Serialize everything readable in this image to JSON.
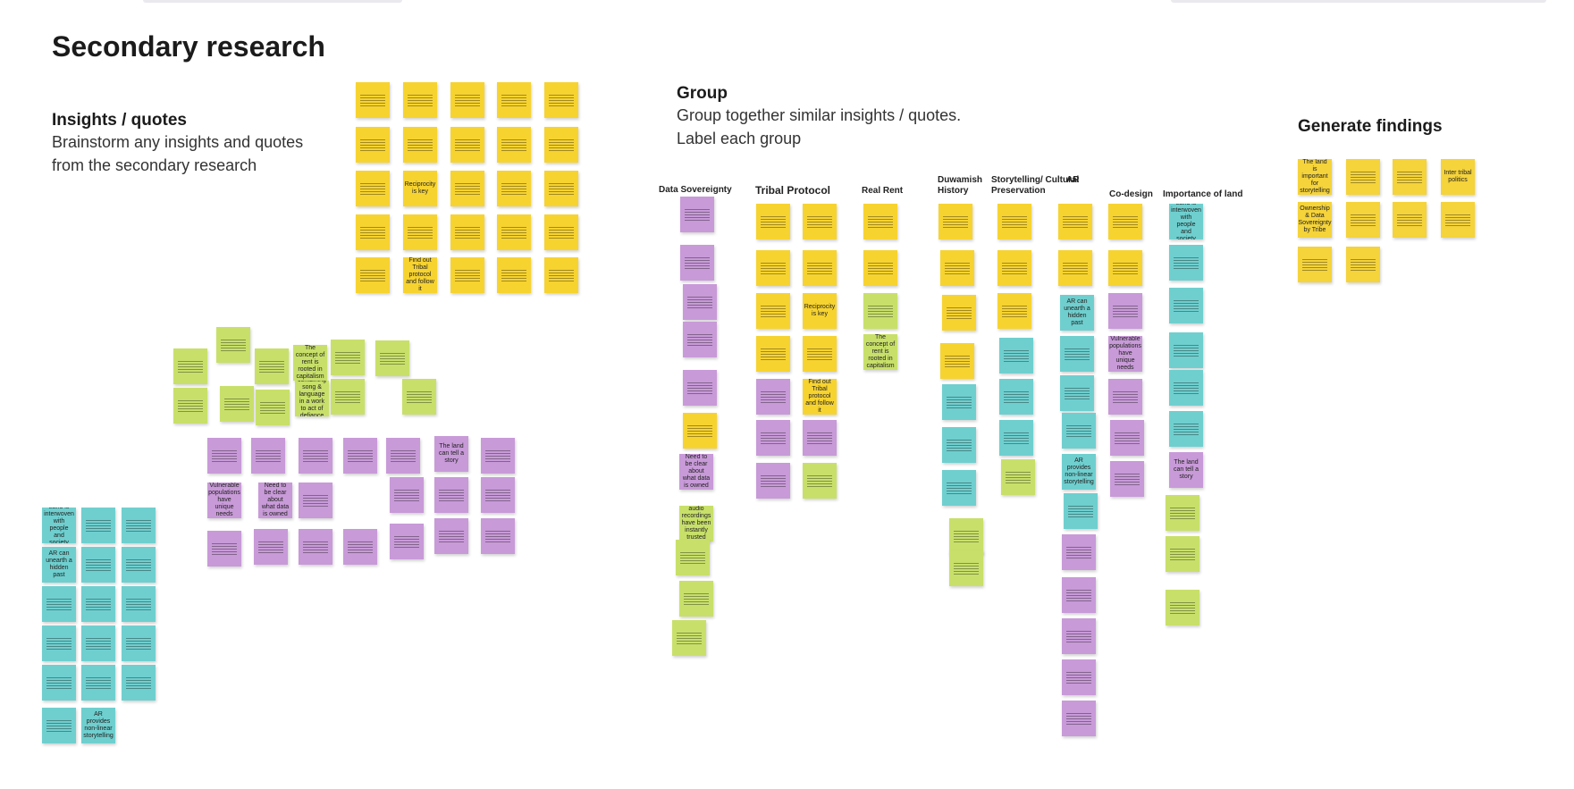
{
  "board": {
    "title": "Secondary research",
    "insights": {
      "heading": "Insights / quotes",
      "description": "Brainstorm any insights and quotes from the secondary research"
    },
    "group": {
      "heading": "Group",
      "description": "Group together similar insights / quotes. Label each group"
    },
    "findings": {
      "heading": "Generate findings"
    }
  },
  "group_columns": [
    {
      "label": "Data Sovereignty"
    },
    {
      "label": "Tribal Protocol"
    },
    {
      "label": "Real Rent"
    },
    {
      "label": "Duwamish History"
    },
    {
      "label": "Storytelling/ Cultural Preservation"
    },
    {
      "label": "AR"
    },
    {
      "label": "Co-design"
    },
    {
      "label": "Importance of land"
    }
  ],
  "readable_notes": {
    "reciprocity": "Reciprocity is key",
    "find_tribal": "Find out Tribal protocol and follow it",
    "concept_rent": "The concept of rent is rooted in capitalism",
    "land_story": "The land can tell a story",
    "need_clear": "Need to be clear about what data is owned",
    "vulnerable": "Vulnerable populations have unique needs",
    "land_interwoven": "Land is interwoven with people and society",
    "ar_hidden": "AR can unearth a hidden past",
    "ar_nonlinear": "AR provides non-linear storytelling",
    "audio": "audio recordings have been instantly trusted",
    "combining": "combining song & language in a work to act of defiance",
    "ownership": "Ownership & Data Sovereignty by Tribe",
    "inter_tribal": "Inter tribal politics",
    "land_important": "The land is important for storytelling"
  }
}
